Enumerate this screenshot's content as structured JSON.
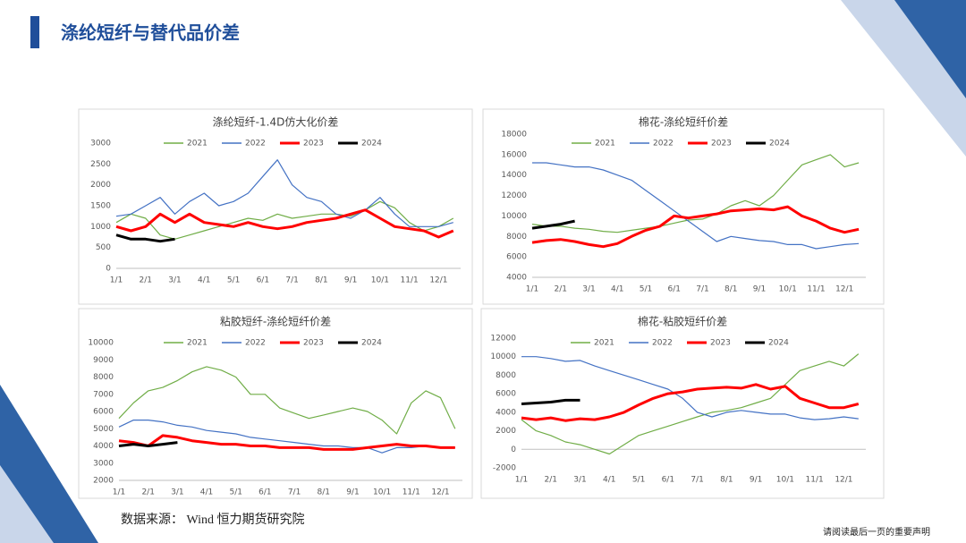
{
  "page": {
    "title": "涤纶短纤与替代品价差",
    "source": "数据来源： Wind 恒力期货研究院",
    "disclaimer": "请阅读最后一页的重要声明"
  },
  "chart_data": [
    {
      "type": "line",
      "title": "涤纶短纤-1.4D仿大化价差",
      "grid": false,
      "categories": [
        "1/1",
        null,
        "2/1",
        null,
        "3/1",
        null,
        "4/1",
        null,
        "5/1",
        null,
        "6/1",
        null,
        "7/1",
        null,
        "8/1",
        null,
        "9/1",
        null,
        "10/1",
        null,
        "11/1",
        null,
        "12/1",
        null
      ],
      "ylim": [
        0,
        3000
      ],
      "yticks": [
        0,
        500,
        1000,
        1500,
        2000,
        2500,
        3000
      ],
      "series": [
        {
          "name": "2021",
          "color": "#70ad47",
          "values": [
            1100,
            1300,
            1200,
            800,
            700,
            800,
            900,
            1000,
            1100,
            1200,
            1150,
            1300,
            1200,
            1250,
            1300,
            1300,
            1250,
            1400,
            1600,
            1450,
            1100,
            900,
            1000,
            1200
          ]
        },
        {
          "name": "2022",
          "color": "#4472c4",
          "values": [
            1250,
            1300,
            1500,
            1700,
            1300,
            1600,
            1800,
            1500,
            1600,
            1800,
            2200,
            2600,
            2000,
            1700,
            1600,
            1300,
            1200,
            1400,
            1700,
            1300,
            1000,
            1000,
            1000,
            1100
          ]
        },
        {
          "name": "2023",
          "color": "#ff0000",
          "values": [
            1000,
            900,
            1000,
            1300,
            1100,
            1300,
            1100,
            1050,
            1000,
            1100,
            1000,
            950,
            1000,
            1100,
            1150,
            1200,
            1300,
            1400,
            1200,
            1000,
            950,
            900,
            750,
            900
          ]
        },
        {
          "name": "2024",
          "color": "#000000",
          "values": [
            800,
            700,
            700,
            650,
            700,
            null,
            null,
            null,
            null,
            null,
            null,
            null,
            null,
            null,
            null,
            null,
            null,
            null,
            null,
            null,
            null,
            null,
            null,
            null
          ]
        }
      ]
    },
    {
      "type": "line",
      "title": "棉花-涤纶短纤价差",
      "grid": false,
      "categories": [
        "1/1",
        null,
        "2/1",
        null,
        "3/1",
        null,
        "4/1",
        null,
        "5/1",
        null,
        "6/1",
        null,
        "7/1",
        null,
        "8/1",
        null,
        "9/1",
        null,
        "10/1",
        null,
        "11/1",
        null,
        "12/1",
        null
      ],
      "ylim": [
        4000,
        18000
      ],
      "yticks": [
        4000,
        6000,
        8000,
        10000,
        12000,
        14000,
        16000,
        18000
      ],
      "series": [
        {
          "name": "2021",
          "color": "#70ad47",
          "values": [
            9200,
            9000,
            9000,
            8800,
            8700,
            8500,
            8400,
            8600,
            8800,
            9000,
            9300,
            9600,
            9700,
            10200,
            11000,
            11500,
            11000,
            12000,
            13500,
            15000,
            15500,
            16000,
            14800,
            15200
          ]
        },
        {
          "name": "2022",
          "color": "#4472c4",
          "values": [
            15200,
            15200,
            15000,
            14800,
            14800,
            14500,
            14000,
            13500,
            12500,
            11500,
            10500,
            9500,
            8500,
            7500,
            8000,
            7800,
            7600,
            7500,
            7200,
            7200,
            6800,
            7000,
            7200,
            7300
          ]
        },
        {
          "name": "2023",
          "color": "#ff0000",
          "values": [
            7400,
            7600,
            7700,
            7500,
            7200,
            7000,
            7300,
            8000,
            8600,
            9000,
            10000,
            9800,
            10000,
            10200,
            10500,
            10600,
            10700,
            10600,
            10900,
            10000,
            9500,
            8800,
            8400,
            8700
          ]
        },
        {
          "name": "2024",
          "color": "#000000",
          "values": [
            8800,
            9000,
            9200,
            9500,
            null,
            null,
            null,
            null,
            null,
            null,
            null,
            null,
            null,
            null,
            null,
            null,
            null,
            null,
            null,
            null,
            null,
            null,
            null,
            null
          ]
        }
      ]
    },
    {
      "type": "line",
      "title": "粘胶短纤-涤纶短纤价差",
      "grid": false,
      "categories": [
        "1/1",
        null,
        "2/1",
        null,
        "3/1",
        null,
        "4/1",
        null,
        "5/1",
        null,
        "6/1",
        null,
        "7/1",
        null,
        "8/1",
        null,
        "9/1",
        null,
        "10/1",
        null,
        "11/1",
        null,
        "12/1",
        null
      ],
      "ylim": [
        2000,
        10000
      ],
      "yticks": [
        2000,
        3000,
        4000,
        5000,
        6000,
        7000,
        8000,
        9000,
        10000
      ],
      "series": [
        {
          "name": "2021",
          "color": "#70ad47",
          "values": [
            5600,
            6500,
            7200,
            7400,
            7800,
            8300,
            8600,
            8400,
            8000,
            7000,
            7000,
            6200,
            5900,
            5600,
            5800,
            6000,
            6200,
            6000,
            5500,
            4700,
            6500,
            7200,
            6800,
            5000
          ]
        },
        {
          "name": "2022",
          "color": "#4472c4",
          "values": [
            5100,
            5500,
            5500,
            5400,
            5200,
            5100,
            4900,
            4800,
            4700,
            4500,
            4400,
            4300,
            4200,
            4100,
            4000,
            4000,
            3900,
            3900,
            3600,
            3900,
            3900,
            4000,
            3900,
            3900
          ]
        },
        {
          "name": "2023",
          "color": "#ff0000",
          "values": [
            4300,
            4200,
            4000,
            4600,
            4500,
            4300,
            4200,
            4100,
            4100,
            4000,
            4000,
            3900,
            3900,
            3900,
            3800,
            3800,
            3800,
            3900,
            4000,
            4100,
            4000,
            4000,
            3900,
            3900
          ]
        },
        {
          "name": "2024",
          "color": "#000000",
          "values": [
            4000,
            4100,
            4000,
            4100,
            4200,
            null,
            null,
            null,
            null,
            null,
            null,
            null,
            null,
            null,
            null,
            null,
            null,
            null,
            null,
            null,
            null,
            null,
            null,
            null
          ]
        }
      ]
    },
    {
      "type": "line",
      "title": "棉花-粘胶短纤价差",
      "grid": false,
      "categories": [
        "1/1",
        null,
        "2/1",
        null,
        "3/1",
        null,
        "4/1",
        null,
        "5/1",
        null,
        "6/1",
        null,
        "7/1",
        null,
        "8/1",
        null,
        "9/1",
        null,
        "10/1",
        null,
        "11/1",
        null,
        "12/1",
        null
      ],
      "ylim": [
        -2000,
        12000
      ],
      "yticks": [
        -2000,
        0,
        2000,
        4000,
        6000,
        8000,
        10000,
        12000
      ],
      "series": [
        {
          "name": "2021",
          "color": "#70ad47",
          "values": [
            3200,
            2000,
            1500,
            800,
            500,
            0,
            -500,
            500,
            1500,
            2000,
            2500,
            3000,
            3500,
            4000,
            4200,
            4500,
            5000,
            5500,
            7000,
            8500,
            9000,
            9500,
            9000,
            10300
          ]
        },
        {
          "name": "2022",
          "color": "#4472c4",
          "values": [
            10000,
            10000,
            9800,
            9500,
            9600,
            9000,
            8500,
            8000,
            7500,
            7000,
            6500,
            5500,
            4000,
            3500,
            4000,
            4200,
            4000,
            3800,
            3800,
            3400,
            3200,
            3300,
            3500,
            3300
          ]
        },
        {
          "name": "2023",
          "color": "#ff0000",
          "values": [
            3400,
            3200,
            3400,
            3100,
            3300,
            3200,
            3500,
            4000,
            4800,
            5500,
            6000,
            6200,
            6500,
            6600,
            6700,
            6600,
            7000,
            6500,
            6800,
            5500,
            5000,
            4500,
            4500,
            4900
          ]
        },
        {
          "name": "2024",
          "color": "#000000",
          "values": [
            4900,
            5000,
            5100,
            5300,
            5300,
            null,
            null,
            null,
            null,
            null,
            null,
            null,
            null,
            null,
            null,
            null,
            null,
            null,
            null,
            null,
            null,
            null,
            null,
            null
          ]
        }
      ]
    }
  ]
}
